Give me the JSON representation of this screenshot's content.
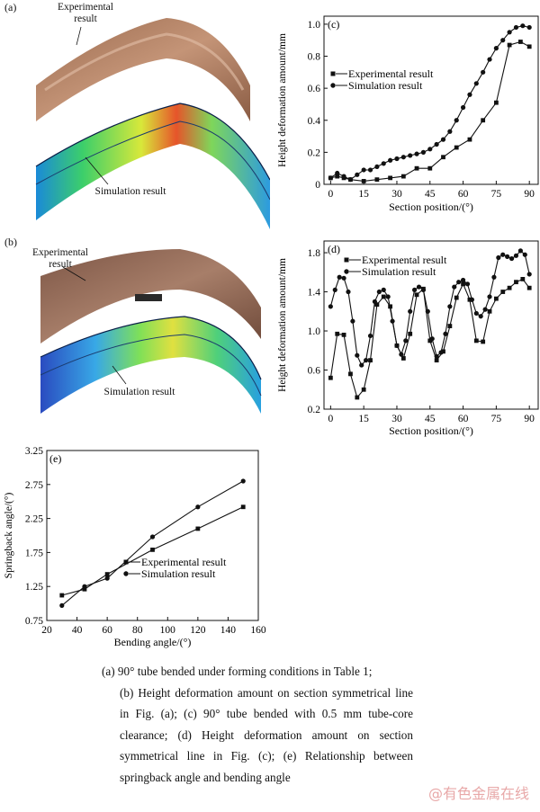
{
  "photo_a": {
    "letter": "(a)",
    "label_experimental": "Experimental result",
    "label_simulation": "Simulation result"
  },
  "photo_b": {
    "letter": "(b)",
    "label_experimental": "Experimental result",
    "label_simulation": "Simulation result"
  },
  "chart_data": [
    {
      "panel": "(c)",
      "type": "line",
      "xlabel": "Section position/(°)",
      "ylabel": "Height deformation amount/mm",
      "xlim": [
        -3,
        94
      ],
      "ylim": [
        0,
        1.05
      ],
      "xticks": [
        "0",
        "15",
        "30",
        "45",
        "60",
        "75",
        "90"
      ],
      "yticks": [
        "0",
        "0.2",
        "0.4",
        "0.6",
        "0.8",
        "1.0"
      ],
      "legend_position": "center-left",
      "series": [
        {
          "name": "Experimental result",
          "marker": "square",
          "x": [
            0,
            3,
            6,
            9,
            15,
            21,
            27,
            33,
            39,
            45,
            51,
            57,
            63,
            69,
            75,
            81,
            86,
            90
          ],
          "y": [
            0.04,
            0.05,
            0.04,
            0.03,
            0.02,
            0.03,
            0.04,
            0.05,
            0.1,
            0.1,
            0.17,
            0.23,
            0.28,
            0.4,
            0.51,
            0.87,
            0.89,
            0.86
          ]
        },
        {
          "name": "Simulation result",
          "marker": "circle",
          "x": [
            0,
            3,
            6,
            9,
            12,
            15,
            18,
            21,
            24,
            27,
            30,
            33,
            36,
            39,
            42,
            45,
            48,
            51,
            54,
            57,
            60,
            63,
            66,
            69,
            72,
            75,
            78,
            81,
            84,
            87,
            90
          ],
          "y": [
            0.04,
            0.07,
            0.05,
            0.03,
            0.06,
            0.09,
            0.09,
            0.11,
            0.13,
            0.15,
            0.16,
            0.17,
            0.18,
            0.19,
            0.2,
            0.22,
            0.25,
            0.28,
            0.33,
            0.4,
            0.48,
            0.56,
            0.63,
            0.7,
            0.78,
            0.85,
            0.9,
            0.95,
            0.98,
            0.99,
            0.98
          ]
        }
      ]
    },
    {
      "panel": "(d)",
      "type": "line",
      "xlabel": "Section position/(°)",
      "ylabel": "Height deformation amount/mm",
      "xlim": [
        -3,
        94
      ],
      "ylim": [
        0.2,
        1.92
      ],
      "xticks": [
        "0",
        "15",
        "30",
        "45",
        "60",
        "75",
        "90"
      ],
      "yticks": [
        "0.2",
        "0.6",
        "1.0",
        "1.4",
        "1.8"
      ],
      "legend_position": "top-center",
      "series": [
        {
          "name": "Experimental result",
          "marker": "square",
          "x": [
            0,
            3,
            6,
            9,
            12,
            15,
            18,
            21,
            24,
            27,
            30,
            33,
            36,
            39,
            42,
            45,
            48,
            51,
            54,
            57,
            60,
            63,
            66,
            69,
            72,
            75,
            78,
            81,
            84,
            87,
            90
          ],
          "y": [
            0.52,
            0.97,
            0.96,
            0.56,
            0.32,
            0.4,
            0.7,
            1.27,
            1.35,
            1.25,
            0.85,
            0.72,
            0.97,
            1.37,
            1.43,
            0.9,
            0.7,
            0.79,
            1.05,
            1.34,
            1.48,
            1.32,
            0.9,
            0.89,
            1.2,
            1.33,
            1.4,
            1.44,
            1.5,
            1.53,
            1.44
          ]
        },
        {
          "name": "Simulation result",
          "marker": "circle",
          "x": [
            0,
            2,
            4,
            6,
            8,
            10,
            12,
            14,
            16,
            18,
            20,
            22,
            24,
            26,
            28,
            30,
            32,
            34,
            36,
            38,
            40,
            42,
            44,
            46,
            48,
            50,
            52,
            54,
            56,
            58,
            60,
            62,
            64,
            66,
            68,
            70,
            72,
            74,
            76,
            78,
            80,
            82,
            84,
            86,
            88,
            90
          ],
          "y": [
            1.25,
            1.42,
            1.55,
            1.54,
            1.4,
            1.1,
            0.75,
            0.65,
            0.7,
            0.95,
            1.3,
            1.4,
            1.42,
            1.35,
            1.1,
            0.85,
            0.76,
            0.9,
            1.2,
            1.42,
            1.45,
            1.42,
            1.2,
            0.92,
            0.74,
            0.78,
            0.97,
            1.25,
            1.45,
            1.5,
            1.52,
            1.48,
            1.32,
            1.18,
            1.15,
            1.22,
            1.35,
            1.55,
            1.75,
            1.78,
            1.76,
            1.74,
            1.77,
            1.82,
            1.78,
            1.58
          ]
        }
      ]
    },
    {
      "panel": "(e)",
      "type": "line",
      "xlabel": "Bending angle/(°)",
      "ylabel": "Springback angle/(°)",
      "xlim": [
        20,
        160
      ],
      "ylim": [
        0.75,
        3.25
      ],
      "xticks": [
        "20",
        "40",
        "60",
        "80",
        "100",
        "120",
        "140",
        "160"
      ],
      "yticks": [
        "0.75",
        "1.25",
        "1.75",
        "2.25",
        "2.75",
        "3.25"
      ],
      "legend_position": "bottom-right",
      "series": [
        {
          "name": "Experimental result",
          "marker": "square",
          "x": [
            30,
            45,
            60,
            90,
            120,
            150
          ],
          "y": [
            1.12,
            1.21,
            1.43,
            1.79,
            2.1,
            2.42
          ]
        },
        {
          "name": "Simulation result",
          "marker": "circle",
          "x": [
            30,
            45,
            60,
            90,
            120,
            150
          ],
          "y": [
            0.97,
            1.25,
            1.37,
            1.98,
            2.42,
            2.8
          ]
        }
      ]
    }
  ],
  "caption": {
    "line1": "(a) 90°  tube bended under forming conditions in Table 1;",
    "rest": "(b)  Height  deformation  amount  on  section symmetrical line in Fig. (a); (c) 90° tube bended with 0.5 mm tube-core clearance; (d) Height deformation amount on section symmetrical line in Fig. (c); (e) Relationship between springback angle and bending angle"
  },
  "watermark": "@有色金属在线"
}
